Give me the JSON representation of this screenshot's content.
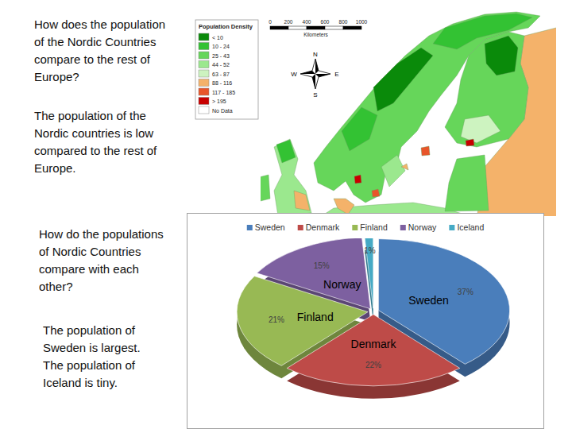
{
  "chart_data": {
    "type": "pie",
    "categories": [
      "Sweden",
      "Denmark",
      "Finland",
      "Norway",
      "Iceland"
    ],
    "values": [
      37,
      22,
      21,
      15,
      1
    ],
    "value_labels": [
      "37%",
      "22%",
      "21%",
      "15%",
      "1%"
    ],
    "colors": [
      "#4a7ebb",
      "#be4b48",
      "#98b954",
      "#7d60a0",
      "#46aac5"
    ],
    "data_labels": true,
    "legend": "top"
  },
  "slide": {
    "sections": [
      {
        "question": [
          "How does the population",
          "of the Nordic Countries",
          "compare to the rest of",
          "Europe?"
        ],
        "answer": [
          "The population of the",
          "Nordic countries is low",
          "compared to the rest of",
          "Europe."
        ]
      },
      {
        "question": [
          "How do the populations",
          "of Nordic Countries",
          "compare with each",
          "other?"
        ],
        "answer": [
          "The population of",
          "Sweden is largest.",
          "The population of",
          "Iceland is tiny."
        ]
      }
    ]
  },
  "map": {
    "legend_title": "Population Density",
    "classes": [
      {
        "label": "< 10",
        "color": "#0a8a0a"
      },
      {
        "label": "10 - 24",
        "color": "#33c233"
      },
      {
        "label": "25 - 43",
        "color": "#66d65a"
      },
      {
        "label": "44 - 52",
        "color": "#9be88e"
      },
      {
        "label": "63 - 87",
        "color": "#cdf3c0"
      },
      {
        "label": "88 - 116",
        "color": "#f4b26a"
      },
      {
        "label": "117 - 185",
        "color": "#e8552a"
      },
      {
        "label": "> 195",
        "color": "#c80000"
      },
      {
        "label": "No Data",
        "color": "#ffffff"
      }
    ],
    "scale_labels": [
      0,
      200,
      400,
      600,
      800,
      1000
    ],
    "scale_unit": "Kilometers",
    "compass": [
      "N",
      "W",
      "E",
      "S"
    ]
  }
}
